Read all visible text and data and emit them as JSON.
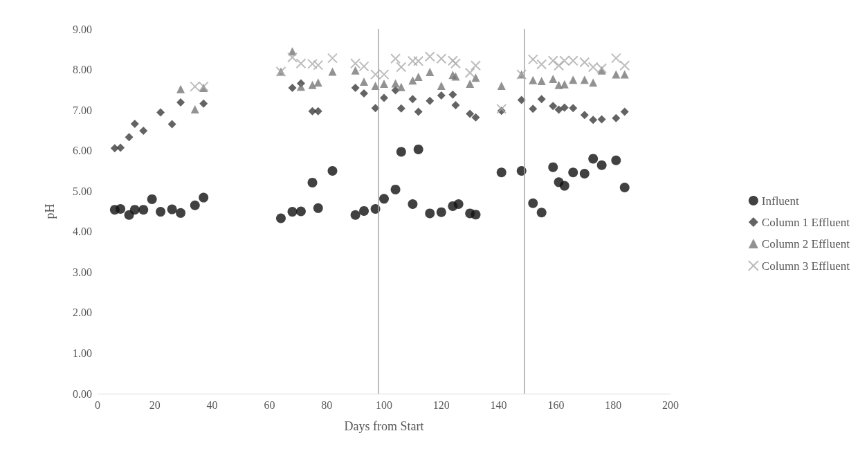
{
  "chart_data": {
    "type": "scatter",
    "xlabel": "Days from Start",
    "ylabel": "pH",
    "xlim": [
      0,
      200
    ],
    "xticks": [
      0,
      20,
      40,
      60,
      80,
      100,
      120,
      140,
      160,
      180,
      200
    ],
    "ylim": [
      0,
      9
    ],
    "yticks": [
      {
        "value": 0,
        "label": "0.00"
      },
      {
        "value": 1,
        "label": "1.00"
      },
      {
        "value": 2,
        "label": "2.00"
      },
      {
        "value": 3,
        "label": "3.00"
      },
      {
        "value": 4,
        "label": "4.00"
      },
      {
        "value": 5,
        "label": "5.00"
      },
      {
        "value": 6,
        "label": "6.00"
      },
      {
        "value": 7,
        "label": "7.00"
      },
      {
        "value": 8,
        "label": "8.00"
      },
      {
        "value": 9,
        "label": "9.00"
      }
    ],
    "grid": false,
    "legend": "right",
    "ref_lines": [
      {
        "axis": "x",
        "value": 98,
        "label": null,
        "color": "#a6a6a6"
      },
      {
        "axis": "x",
        "value": 149,
        "label": null,
        "color": "#a6a6a6"
      }
    ],
    "series": [
      {
        "name": "Influent",
        "color": "#111111",
        "marker": "circle",
        "x": [
          6,
          8,
          11,
          13,
          16,
          19,
          22,
          26,
          29,
          34,
          37,
          64,
          68,
          71,
          75,
          77,
          82,
          90,
          93,
          97,
          100,
          104,
          106,
          110,
          112,
          116,
          120,
          124,
          126,
          130,
          132,
          141,
          148,
          152,
          155,
          159,
          161,
          163,
          166,
          170,
          173,
          176,
          181,
          184
        ],
        "values": [
          4.54,
          4.56,
          4.41,
          4.54,
          4.54,
          4.8,
          4.49,
          4.55,
          4.46,
          4.65,
          4.84,
          4.33,
          4.49,
          4.5,
          5.21,
          4.58,
          5.5,
          4.41,
          4.51,
          4.56,
          4.81,
          5.04,
          5.97,
          4.68,
          6.03,
          4.45,
          4.48,
          4.63,
          4.68,
          4.45,
          4.42,
          5.46,
          5.5,
          4.7,
          4.47,
          5.59,
          5.22,
          5.13,
          5.46,
          5.43,
          5.8,
          5.64,
          5.76,
          5.09
        ]
      },
      {
        "name": "Column 1 Effluent",
        "color": "#3c3c3c",
        "marker": "diamond",
        "x": [
          6,
          8,
          11,
          13,
          16,
          22,
          26,
          29,
          34,
          37,
          68,
          71,
          75,
          77,
          90,
          93,
          97,
          100,
          104,
          106,
          110,
          112,
          116,
          120,
          124,
          125,
          130,
          132,
          141,
          148,
          152,
          155,
          159,
          161,
          163,
          166,
          170,
          173,
          176,
          181,
          184
        ],
        "values": [
          6.06,
          6.07,
          6.33,
          6.66,
          6.49,
          6.94,
          6.65,
          7.19,
          null,
          7.16,
          7.55,
          7.66,
          6.97,
          6.97,
          7.55,
          7.41,
          7.05,
          7.3,
          7.49,
          7.04,
          7.27,
          6.96,
          7.23,
          7.36,
          7.38,
          7.12,
          6.91,
          6.82,
          6.98,
          7.25,
          7.03,
          7.27,
          7.1,
          7.01,
          7.06,
          7.05,
          6.88,
          6.76,
          6.77,
          6.8,
          6.96
        ]
      },
      {
        "name": "Column 2 Effluent",
        "color": "#777777",
        "marker": "triangle",
        "x": [
          29,
          34,
          37,
          64,
          68,
          71,
          75,
          77,
          82,
          90,
          93,
          97,
          100,
          104,
          106,
          110,
          112,
          116,
          120,
          124,
          125,
          130,
          132,
          141,
          148,
          152,
          155,
          159,
          161,
          163,
          166,
          170,
          173,
          176,
          181,
          184
        ],
        "values": [
          7.52,
          7.02,
          7.55,
          7.95,
          8.45,
          7.58,
          7.62,
          7.68,
          7.95,
          7.98,
          7.7,
          7.6,
          7.65,
          7.66,
          7.57,
          7.73,
          7.82,
          7.94,
          7.6,
          7.87,
          7.83,
          7.65,
          7.8,
          7.6,
          7.88,
          7.74,
          7.72,
          7.77,
          7.62,
          7.64,
          7.75,
          7.75,
          7.68,
          7.98,
          7.88,
          7.88
        ]
      },
      {
        "name": "Column 3 Effluent",
        "color": "#ababab",
        "marker": "cross",
        "x": [
          34,
          37,
          64,
          68,
          71,
          75,
          77,
          82,
          90,
          93,
          97,
          100,
          104,
          106,
          110,
          112,
          116,
          120,
          124,
          125,
          130,
          132,
          141,
          148,
          152,
          155,
          159,
          161,
          163,
          166,
          170,
          173,
          176,
          181,
          184
        ],
        "values": [
          7.58,
          7.58,
          7.95,
          8.3,
          8.15,
          8.14,
          8.11,
          8.28,
          8.15,
          8.08,
          7.88,
          7.88,
          8.27,
          8.06,
          8.21,
          8.21,
          8.32,
          8.27,
          8.22,
          8.15,
          7.92,
          8.1,
          7.03,
          7.88,
          8.25,
          8.13,
          8.22,
          8.1,
          8.22,
          8.22,
          8.18,
          8.06,
          8.03,
          8.28,
          8.1
        ]
      }
    ]
  }
}
